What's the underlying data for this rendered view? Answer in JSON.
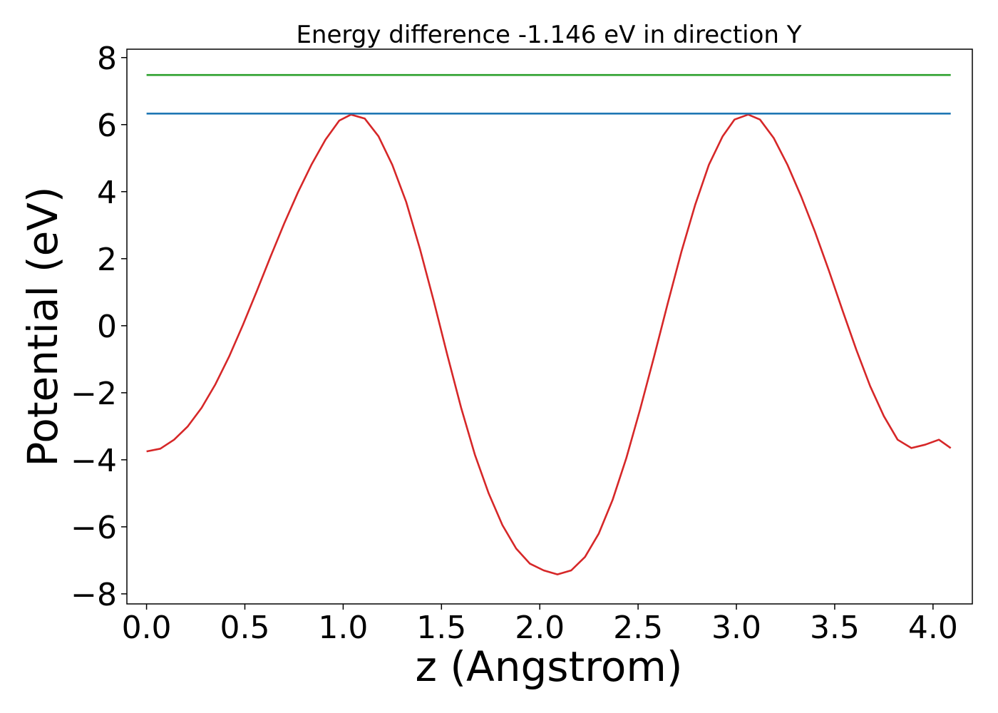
{
  "chart_data": {
    "type": "line",
    "title": "Energy difference -1.146 eV in direction Y",
    "xlabel": "z (Angstrom)",
    "ylabel": "Potential (eV)",
    "xlim": [
      -0.1,
      4.2
    ],
    "ylim": [
      -8.3,
      8.25
    ],
    "xticks": [
      0.0,
      0.5,
      1.0,
      1.5,
      2.0,
      2.5,
      3.0,
      3.5,
      4.0
    ],
    "xtick_labels": [
      "0.0",
      "0.5",
      "1.0",
      "1.5",
      "2.0",
      "2.5",
      "3.0",
      "3.5",
      "4.0"
    ],
    "yticks": [
      -8,
      -6,
      -4,
      -2,
      0,
      2,
      4,
      6,
      8
    ],
    "ytick_labels": [
      "−8",
      "−6",
      "−4",
      "−2",
      "0",
      "2",
      "4",
      "6",
      "8"
    ],
    "grid": false,
    "series": [
      {
        "color": "#d62728",
        "x": [
          0.0,
          0.07,
          0.14,
          0.21,
          0.28,
          0.35,
          0.42,
          0.49,
          0.56,
          0.63,
          0.7,
          0.77,
          0.84,
          0.91,
          0.98,
          1.04,
          1.11,
          1.18,
          1.25,
          1.32,
          1.39,
          1.46,
          1.53,
          1.6,
          1.67,
          1.74,
          1.81,
          1.88,
          1.95,
          2.02,
          2.09,
          2.16,
          2.23,
          2.3,
          2.37,
          2.44,
          2.51,
          2.58,
          2.65,
          2.72,
          2.79,
          2.86,
          2.93,
          2.99,
          3.06,
          3.12,
          3.19,
          3.26,
          3.33,
          3.4,
          3.47,
          3.54,
          3.61,
          3.68,
          3.75,
          3.82,
          3.89,
          3.96,
          4.03,
          4.09
        ],
        "y": [
          -3.75,
          -3.67,
          -3.4,
          -3.0,
          -2.45,
          -1.75,
          -0.92,
          0.02,
          1.02,
          2.05,
          3.05,
          3.98,
          4.82,
          5.55,
          6.12,
          6.3,
          6.18,
          5.65,
          4.8,
          3.7,
          2.3,
          0.75,
          -0.88,
          -2.45,
          -3.85,
          -5.0,
          -5.95,
          -6.65,
          -7.1,
          -7.3,
          -7.42,
          -7.3,
          -6.9,
          -6.2,
          -5.2,
          -3.95,
          -2.5,
          -0.95,
          0.65,
          2.2,
          3.6,
          4.8,
          5.65,
          6.15,
          6.3,
          6.15,
          5.6,
          4.8,
          3.85,
          2.8,
          1.65,
          0.45,
          -0.72,
          -1.8,
          -2.7,
          -3.4,
          -3.65,
          -3.55,
          -3.4,
          -3.65
        ]
      },
      {
        "color": "#1f77b4",
        "x": [
          0.0,
          4.09
        ],
        "y": [
          6.33,
          6.33
        ]
      },
      {
        "color": "#2ca02c",
        "x": [
          0.0,
          4.09
        ],
        "y": [
          7.48,
          7.48
        ]
      }
    ]
  }
}
